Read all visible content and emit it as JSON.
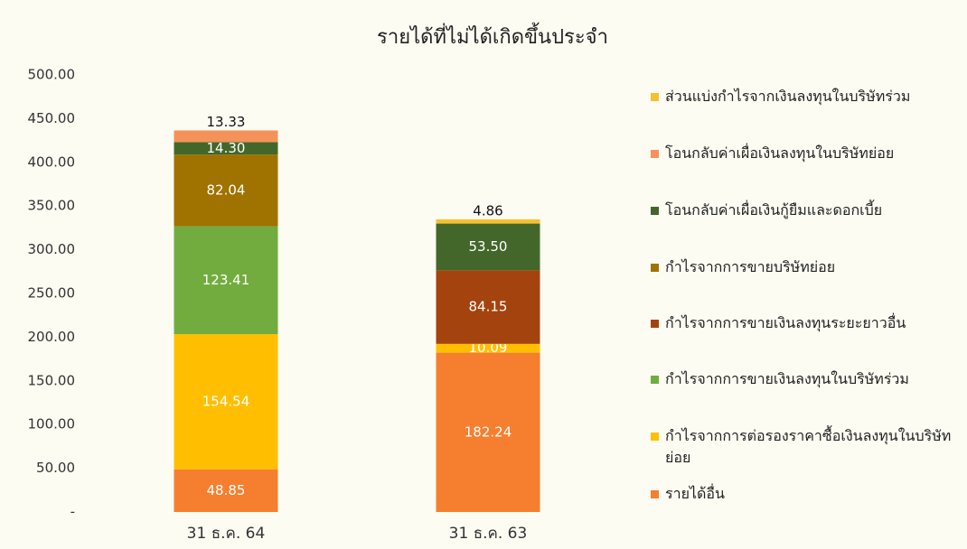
{
  "chart_data": {
    "type": "stacked_bar",
    "title": "รายได้ที่ไม่ได้เกิดขึ้นประจำ",
    "categories": [
      "31 ธ.ค. 64",
      "31 ธ.ค. 63"
    ],
    "series": [
      {
        "name": "รายได้อื่น",
        "color": "#f57f2e",
        "values": [
          48.85,
          182.24
        ],
        "value_labels": [
          "48.85",
          "182.24"
        ]
      },
      {
        "name": "กำไรจากการต่อรองราคาซื้อเงินลงทุนในบริษัทย่อย",
        "color": "#ffbf00",
        "values": [
          154.54,
          10.09
        ],
        "value_labels": [
          "154.54",
          "10.09"
        ]
      },
      {
        "name": "กำไรจากการขายเงินลงทุนในบริษัทร่วม",
        "color": "#72ac3e",
        "values": [
          123.41,
          null
        ],
        "value_labels": [
          "123.41",
          null
        ]
      },
      {
        "name": "กำไรจากการขายเงินลงทุนระยะยาวอื่น",
        "color": "#a5430e",
        "values": [
          null,
          84.15
        ],
        "value_labels": [
          null,
          "84.15"
        ]
      },
      {
        "name": "กำไรจากการขายบริษัทย่อย",
        "color": "#a07200",
        "values": [
          82.04,
          null
        ],
        "value_labels": [
          "82.04",
          null
        ]
      },
      {
        "name": "โอนกลับค่าเผื่อเงินกู้ยืมและดอกเบี้ย",
        "color": "#43672a",
        "values": [
          14.3,
          53.5
        ],
        "value_labels": [
          "14.30",
          "53.50"
        ]
      },
      {
        "name": "โอนกลับค่าเผื่อเงินลงทุนในบริษัทย่อย",
        "color": "#f5925a",
        "values": [
          13.33,
          null
        ],
        "value_labels": [
          "13.33",
          null
        ]
      },
      {
        "name": "ส่วนแบ่งกำไรจากเงินลงทุนในบริษัทร่วม",
        "color": "#f5c130",
        "values": [
          null,
          4.86
        ],
        "value_labels": [
          null,
          "4.86"
        ]
      }
    ],
    "ylim": [
      0,
      500
    ],
    "yticks": [
      {
        "value": 0,
        "label": "-"
      },
      {
        "value": 50,
        "label": "50.00"
      },
      {
        "value": 100,
        "label": "100.00"
      },
      {
        "value": 150,
        "label": "150.00"
      },
      {
        "value": 200,
        "label": "200.00"
      },
      {
        "value": 250,
        "label": "250.00"
      },
      {
        "value": 300,
        "label": "300.00"
      },
      {
        "value": 350,
        "label": "350.00"
      },
      {
        "value": 400,
        "label": "400.00"
      },
      {
        "value": 450,
        "label": "450.00"
      },
      {
        "value": 500,
        "label": "500.00"
      }
    ]
  }
}
